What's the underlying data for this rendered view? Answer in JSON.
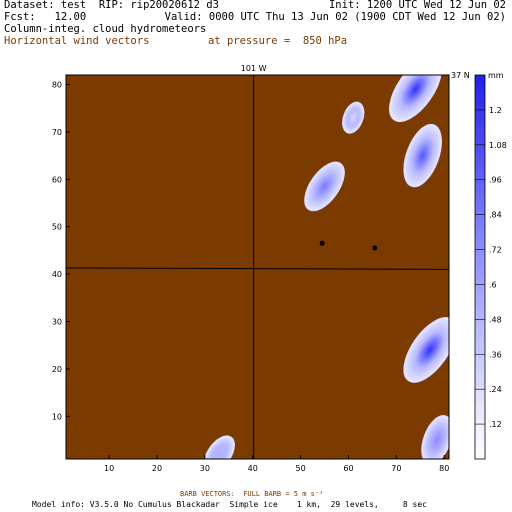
{
  "header": {
    "dataset": "Dataset: test  RIP: rip20020612 d3",
    "init": "Init: 1200 UTC Wed 12 Jun 02",
    "fcst": "Fcst:   12.00",
    "valid": "Valid: 0000 UTC Thu 13 Jun 02 (1900 CDT Wed 12 Jun 02)",
    "field1": "Column-integ. cloud hydrometeors",
    "field2": "Horizontal wind vectors",
    "pressure": "at pressure =  850 hPa"
  },
  "chart_data": {
    "type": "heatmap",
    "top_label": "101 W",
    "corner_label": "37 N",
    "units": "mm",
    "xlim": [
      1,
      81
    ],
    "ylim": [
      1,
      82
    ],
    "x_ticks": [
      10,
      20,
      30,
      40,
      50,
      60,
      70,
      80
    ],
    "y_ticks": [
      10,
      20,
      30,
      40,
      50,
      60,
      70,
      80
    ],
    "colorbar_ticks": [
      "1.2",
      "1.08",
      ".96",
      ".84",
      ".72",
      ".6",
      ".48",
      ".36",
      ".24",
      ".12"
    ],
    "colorbar_range": [
      0,
      1.32
    ],
    "background_color": "#7a3a00",
    "points": [
      {
        "x": 54.5,
        "y": 46.5
      },
      {
        "x": 65.5,
        "y": 45.5
      }
    ],
    "clouds": [
      {
        "x": 55,
        "y": 58.5,
        "peak": 0.72
      },
      {
        "x": 61,
        "y": 73,
        "peak": 0.12
      },
      {
        "x": 74,
        "y": 79,
        "peak": 1.2
      },
      {
        "x": 75.5,
        "y": 65,
        "peak": 0.96
      },
      {
        "x": 77,
        "y": 24,
        "peak": 1.2
      },
      {
        "x": 78.5,
        "y": 5,
        "peak": 0.6
      },
      {
        "x": 33,
        "y": 2,
        "peak": 0.36
      }
    ]
  },
  "footer": {
    "barb": "BARB VECTORS:  FULL BARB = 5 m s⁻¹",
    "model": "Model info: V3.5.0 No Cumulus Blackadar  Simple ice    1 km,  29 levels,     8 sec"
  }
}
